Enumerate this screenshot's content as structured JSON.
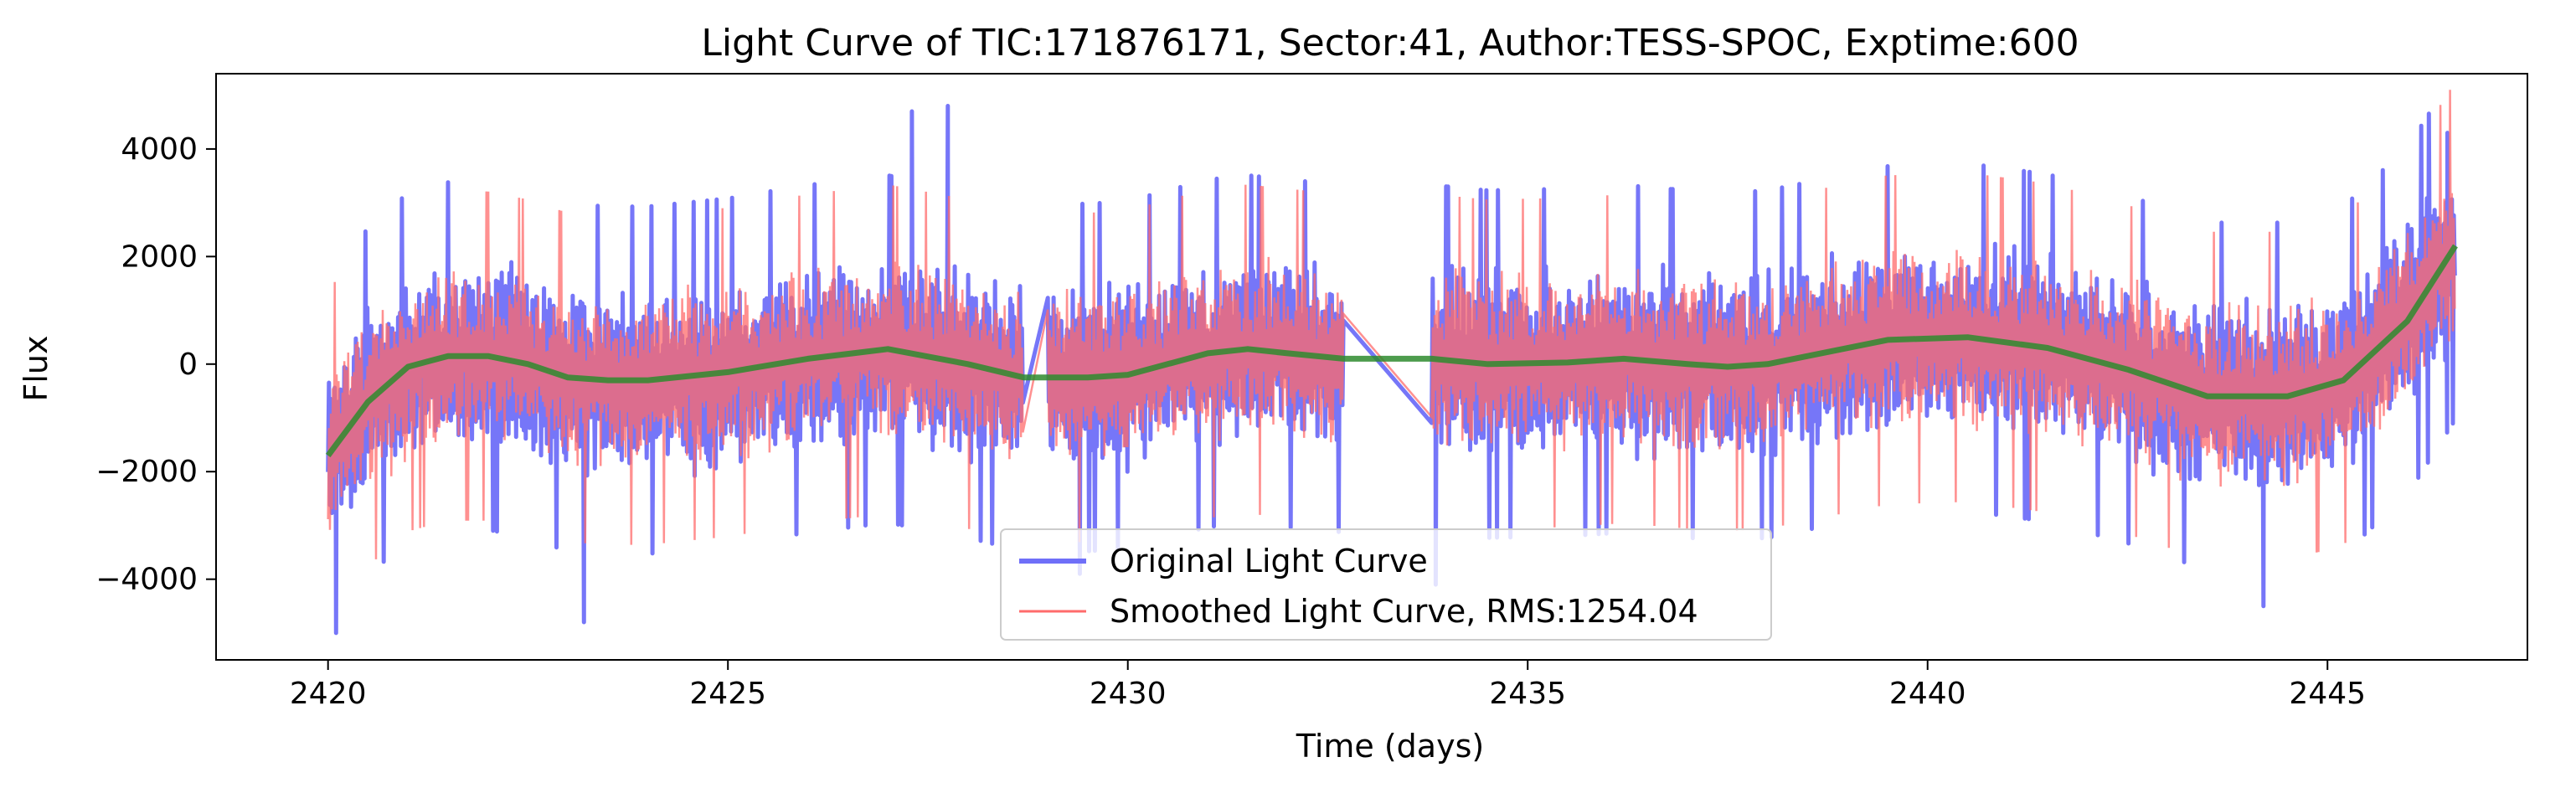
{
  "chart_data": {
    "type": "line",
    "title": "Light Curve of TIC:171876171, Sector:41, Author:TESS-SPOC, Exptime:600",
    "xlabel": "Time (days)",
    "ylabel": "Flux",
    "xlim": [
      2418.6,
      2447.5
    ],
    "ylim": [
      -5500,
      5400
    ],
    "xticks": [
      {
        "value": 2420,
        "label": "2420"
      },
      {
        "value": 2425,
        "label": "2425"
      },
      {
        "value": 2430,
        "label": "2430"
      },
      {
        "value": 2435,
        "label": "2435"
      },
      {
        "value": 2440,
        "label": "2440"
      },
      {
        "value": 2445,
        "label": "2445"
      }
    ],
    "yticks": [
      {
        "value": 4000,
        "label": "4000"
      },
      {
        "value": 2000,
        "label": "2000"
      },
      {
        "value": 0,
        "label": "0"
      },
      {
        "value": -2000,
        "label": "−2000"
      },
      {
        "value": -4000,
        "label": "−4000"
      }
    ],
    "grid": false,
    "legend_position": "lower-center",
    "data_gaps": [
      [
        2428.7,
        2429.0
      ],
      [
        2432.7,
        2433.8
      ]
    ],
    "series": [
      {
        "name": "Original Light Curve",
        "color": "#6f6ff8",
        "style": "thick-line",
        "noise_amplitude": 1900,
        "range": [
          2420.0,
          2446.6
        ],
        "outliers": [
          {
            "x": 2420.1,
            "y": -5000
          },
          {
            "x": 2423.2,
            "y": -4800
          },
          {
            "x": 2427.3,
            "y": 4700
          },
          {
            "x": 2427.75,
            "y": 4800
          },
          {
            "x": 2429.4,
            "y": -3900
          },
          {
            "x": 2433.85,
            "y": -4100
          },
          {
            "x": 2444.2,
            "y": -4500
          },
          {
            "x": 2446.5,
            "y": 4300
          }
        ]
      },
      {
        "name": "Smoothed Light Curve, RMS:1254.04",
        "color": "#ff6b6b",
        "style": "thin-line",
        "noise_amplitude": 1800,
        "range": [
          2420.0,
          2446.6
        ]
      },
      {
        "name": "",
        "color": "#2e8b2e",
        "style": "trend",
        "points": [
          {
            "x": 2420.0,
            "y": -1700
          },
          {
            "x": 2420.5,
            "y": -700
          },
          {
            "x": 2421.0,
            "y": -50
          },
          {
            "x": 2421.5,
            "y": 150
          },
          {
            "x": 2422.0,
            "y": 150
          },
          {
            "x": 2422.5,
            "y": 0
          },
          {
            "x": 2423.0,
            "y": -250
          },
          {
            "x": 2423.5,
            "y": -300
          },
          {
            "x": 2424.0,
            "y": -300
          },
          {
            "x": 2425.0,
            "y": -150
          },
          {
            "x": 2426.0,
            "y": 100
          },
          {
            "x": 2427.0,
            "y": 280
          },
          {
            "x": 2428.0,
            "y": 0
          },
          {
            "x": 2428.7,
            "y": -250
          },
          {
            "x": 2429.5,
            "y": -250
          },
          {
            "x": 2430.0,
            "y": -200
          },
          {
            "x": 2431.0,
            "y": 200
          },
          {
            "x": 2431.5,
            "y": 280
          },
          {
            "x": 2432.0,
            "y": 200
          },
          {
            "x": 2432.7,
            "y": 100
          },
          {
            "x": 2433.8,
            "y": 100
          },
          {
            "x": 2434.5,
            "y": 0
          },
          {
            "x": 2435.5,
            "y": 30
          },
          {
            "x": 2436.2,
            "y": 100
          },
          {
            "x": 2437.0,
            "y": 0
          },
          {
            "x": 2437.5,
            "y": -50
          },
          {
            "x": 2438.0,
            "y": 0
          },
          {
            "x": 2438.5,
            "y": 150
          },
          {
            "x": 2439.5,
            "y": 450
          },
          {
            "x": 2440.5,
            "y": 500
          },
          {
            "x": 2441.5,
            "y": 300
          },
          {
            "x": 2442.5,
            "y": -100
          },
          {
            "x": 2443.5,
            "y": -600
          },
          {
            "x": 2444.5,
            "y": -600
          },
          {
            "x": 2445.2,
            "y": -300
          },
          {
            "x": 2446.0,
            "y": 800
          },
          {
            "x": 2446.6,
            "y": 2200
          }
        ]
      }
    ],
    "legend": [
      {
        "label": "Original Light Curve",
        "color": "#6f6ff8"
      },
      {
        "label": "Smoothed Light Curve, RMS:1254.04",
        "color": "#ff6b6b"
      }
    ]
  }
}
